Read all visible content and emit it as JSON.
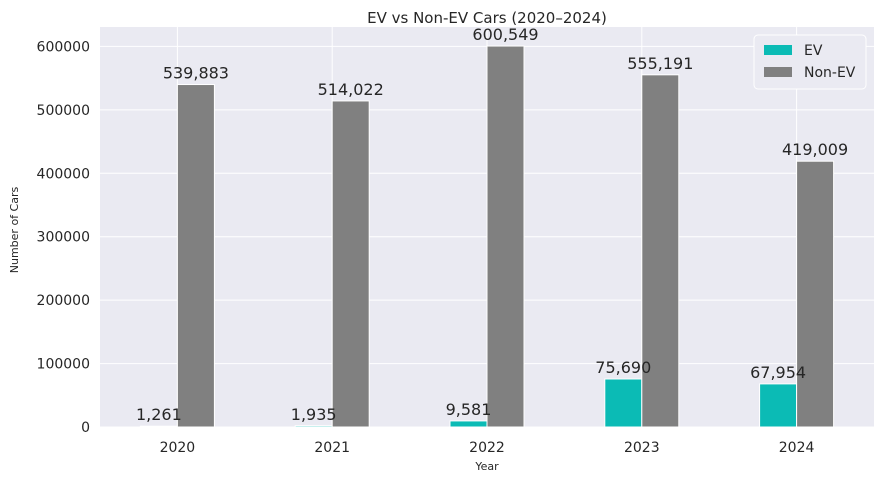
{
  "chart_data": {
    "type": "bar",
    "title": "EV vs Non-EV Cars (2020–2024)",
    "xlabel": "Year",
    "ylabel": "Number of Cars",
    "categories": [
      "2020",
      "2021",
      "2022",
      "2023",
      "2024"
    ],
    "series": [
      {
        "name": "EV",
        "values": [
          1261,
          1935,
          9581,
          75690,
          67954
        ],
        "labels": [
          "1,261",
          "1,935",
          "9,581",
          "75,690",
          "67,954"
        ],
        "color": "#0bbbb5"
      },
      {
        "name": "Non-EV",
        "values": [
          539883,
          514022,
          600549,
          555191,
          419009
        ],
        "labels": [
          "539,883",
          "514,022",
          "600,549",
          "555,191",
          "419,009"
        ],
        "color": "#808080"
      }
    ],
    "ylim": [
      0,
      630577
    ],
    "yticks": [
      0,
      100000,
      200000,
      300000,
      400000,
      500000,
      600000
    ],
    "ytick_labels": [
      "0",
      "100000",
      "200000",
      "300000",
      "400000",
      "500000",
      "600000"
    ],
    "grid": true,
    "legend_position": "top-right",
    "background": "#eaeaf2"
  }
}
